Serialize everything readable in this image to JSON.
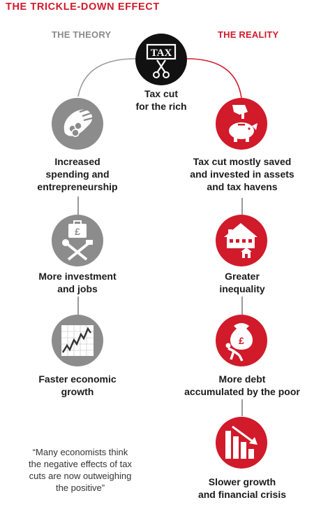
{
  "title": "THE TRICKLE-DOWN EFFECT",
  "columns": {
    "theory": "THE THEORY",
    "reality": "THE REALITY"
  },
  "top": {
    "badge": "TAX",
    "label_line1": "Tax cut",
    "label_line2": "for the rich",
    "icon": "tax-scissors-icon"
  },
  "theory_steps": [
    {
      "icon": "hand-coins-icon",
      "line1": "Increased",
      "line2": "spending and",
      "line3": "entrepreneurship"
    },
    {
      "icon": "briefcase-tools-icon",
      "line1": "More investment",
      "line2": "and jobs"
    },
    {
      "icon": "rising-graph-icon",
      "line1": "Faster economic",
      "line2": "growth"
    }
  ],
  "reality_steps": [
    {
      "icon": "hand-piggybank-icon",
      "line1": "Tax cut mostly saved",
      "line2": "and invested in assets",
      "line3": "and tax havens"
    },
    {
      "icon": "houses-icon",
      "line1": "Greater",
      "line2": "inequality"
    },
    {
      "icon": "debt-sack-icon",
      "line1": "More debt",
      "line2": "accumulated by the poor"
    },
    {
      "icon": "falling-bars-icon",
      "line1": "Slower growth",
      "line2": "and financial crisis"
    }
  ],
  "quote": {
    "line1": "“Many economists think",
    "line2": "the negative effects of tax",
    "line3": "cuts are now outweighing",
    "line4": "the positive”"
  },
  "colors": {
    "accent_red": "#d11a2a",
    "theory_grey": "#8c8c8c",
    "top_black": "#111111"
  }
}
